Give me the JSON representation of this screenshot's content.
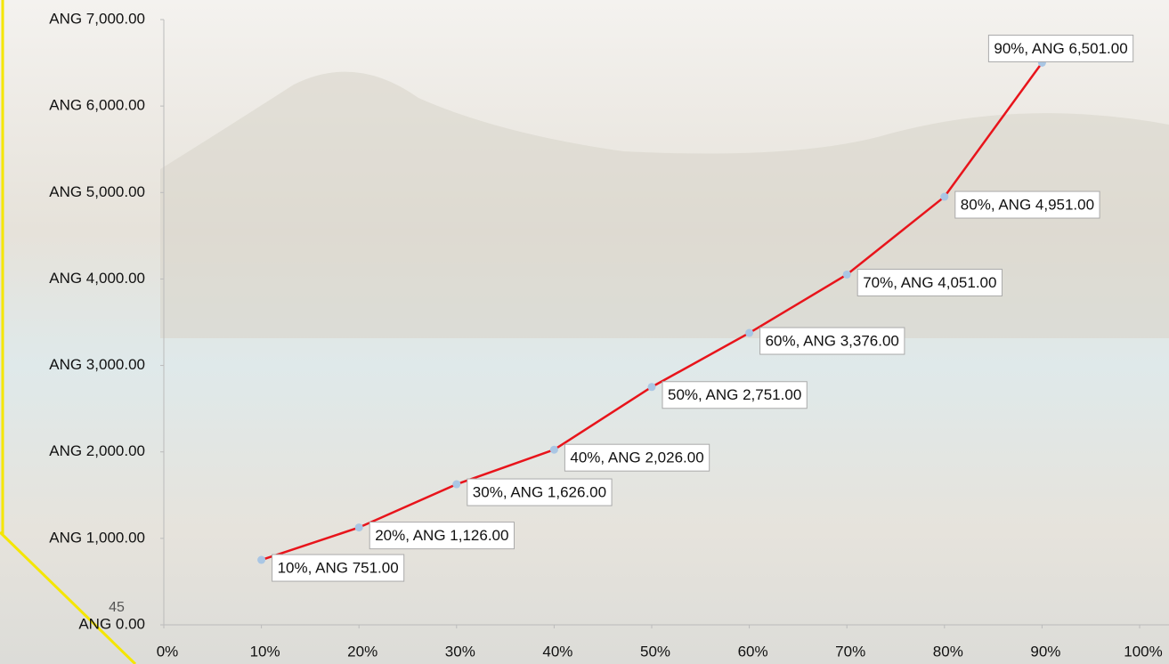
{
  "chart_data": {
    "type": "line",
    "x": [
      10,
      20,
      30,
      40,
      50,
      60,
      70,
      80,
      90
    ],
    "series": [
      {
        "color": "#e8141b",
        "marker_color": "#a9c6e4",
        "values": [
          751,
          1126,
          1626,
          2026,
          2751,
          3376,
          4051,
          4951,
          6501
        ],
        "value_labels": [
          "10%, ANG 751.00",
          "20%, ANG 1,126.00",
          "30%, ANG 1,626.00",
          "40%, ANG 2,026.00",
          "50%, ANG 2,751.00",
          "60%, ANG 3,376.00",
          "70%, ANG 4,051.00",
          "80%, ANG 4,951.00",
          "90%, ANG 6,501.00"
        ]
      }
    ],
    "xlim": [
      0,
      100
    ],
    "xticks": [
      {
        "value": 0,
        "label": "0%"
      },
      {
        "value": 10,
        "label": "10%"
      },
      {
        "value": 20,
        "label": "20%"
      },
      {
        "value": 30,
        "label": "30%"
      },
      {
        "value": 40,
        "label": "40%"
      },
      {
        "value": 50,
        "label": "50%"
      },
      {
        "value": 60,
        "label": "60%"
      },
      {
        "value": 70,
        "label": "70%"
      },
      {
        "value": 80,
        "label": "80%"
      },
      {
        "value": 90,
        "label": "90%"
      },
      {
        "value": 100,
        "label": "100%"
      }
    ],
    "ylim": [
      0,
      7000
    ],
    "yticks": [
      {
        "value": 0,
        "label": "ANG 0.00"
      },
      {
        "value": 1000,
        "label": "ANG 1,000.00"
      },
      {
        "value": 2000,
        "label": "ANG 2,000.00"
      },
      {
        "value": 3000,
        "label": "ANG 3,000.00"
      },
      {
        "value": 4000,
        "label": "ANG 4,000.00"
      },
      {
        "value": 5000,
        "label": "ANG 5,000.00"
      },
      {
        "value": 6000,
        "label": "ANG 6,000.00"
      },
      {
        "value": 7000,
        "label": "ANG 7,000.00"
      }
    ]
  },
  "page_number": "45"
}
